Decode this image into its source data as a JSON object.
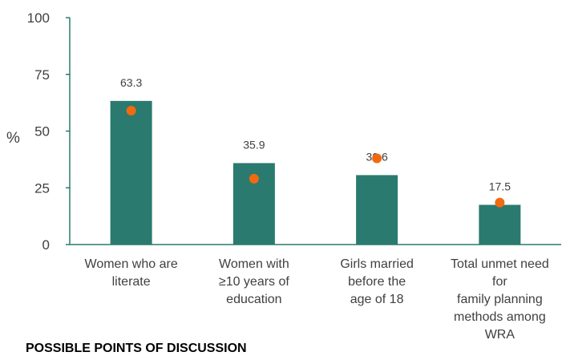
{
  "chart_data": {
    "type": "bar",
    "ylabel": "%",
    "ylim": [
      0,
      100
    ],
    "yticks": [
      0,
      25,
      50,
      75,
      100
    ],
    "categories": [
      "Women who are\nliterate",
      "Women with\n≥10 years of\neducation",
      "Girls married\nbefore the\nage of 18",
      "Total unmet need\nfor\nfamily planning\nmethods among\nWRA"
    ],
    "series": [
      {
        "values": [
          63.3,
          35.9,
          30.6,
          17.5
        ],
        "labels": [
          "63.3",
          "35.9",
          "30.6",
          "17.5"
        ]
      },
      {
        "values": [
          59,
          29,
          38,
          18.5
        ]
      }
    ],
    "colors": {
      "bar": "#2a7a6f",
      "marker": "#f26a10",
      "axis": "#2a7a6f",
      "text": "#404040"
    },
    "grid": false,
    "legend": "none"
  },
  "footer_text": "POSSIBLE POINTS OF DISCUSSION"
}
